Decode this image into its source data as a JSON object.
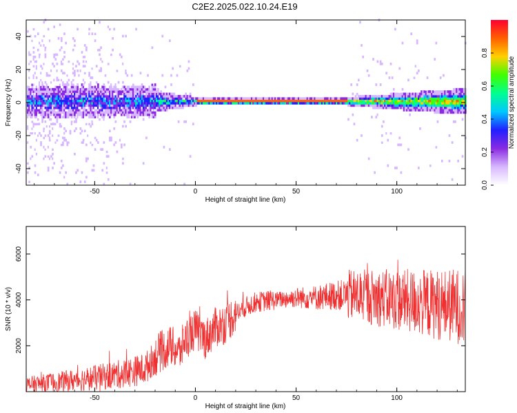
{
  "title": "C2E2.2025.022.10.24.E19",
  "charts": [
    {
      "type": "heatmap",
      "xlabel": "Height of straight line (km)",
      "ylabel": "Frequency (Hz)",
      "xlim": [
        -84,
        134
      ],
      "ylim": [
        -50,
        50
      ],
      "xticks": [
        "-50",
        "0",
        "50",
        "100"
      ],
      "yticks": [
        "-40",
        "-20",
        "0",
        "20",
        "40"
      ],
      "grid": false,
      "colorbar": {
        "label": "Normalized spectral amplitude",
        "range": [
          0,
          1
        ],
        "ticks": [
          "0.0",
          "0.2",
          "0.4",
          "0.6",
          "0.8"
        ],
        "colormap": [
          "#ffffff",
          "#d7b8ff",
          "#8a2be2",
          "#2020ff",
          "#00c8ff",
          "#00ff90",
          "#40ff00",
          "#ffd000",
          "#ff6000",
          "#ff0030"
        ]
      },
      "notes": "Energy concentrated along frequency 0 Hz; broad (approx -5 to 5 Hz) and noisy below -20 km, narrow and strong red above 0 km, broader again above 80 km."
    },
    {
      "type": "line",
      "xlabel": "Height of straight line (km)",
      "ylabel": "SNR (10 * v/v)",
      "xlim": [
        -84,
        134
      ],
      "ylim": [
        0,
        7200
      ],
      "xticks": [
        "-50",
        "0",
        "50",
        "100"
      ],
      "yticks": [
        "2000",
        "4000",
        "6000"
      ],
      "grid": false,
      "color": "#f03030",
      "series_trend": {
        "x": [
          -84,
          -70,
          -50,
          -35,
          -25,
          -18,
          -12,
          -8,
          -5,
          0,
          5,
          10,
          15,
          20,
          25,
          30,
          40,
          50,
          60,
          70,
          80,
          90,
          100,
          110,
          120,
          134
        ],
        "y": [
          300,
          400,
          600,
          800,
          1000,
          1700,
          2000,
          1700,
          2300,
          2700,
          2300,
          2800,
          3000,
          3400,
          3700,
          3900,
          4000,
          4100,
          4100,
          4200,
          4200,
          4100,
          4000,
          3900,
          3800,
          3700
        ]
      }
    }
  ]
}
